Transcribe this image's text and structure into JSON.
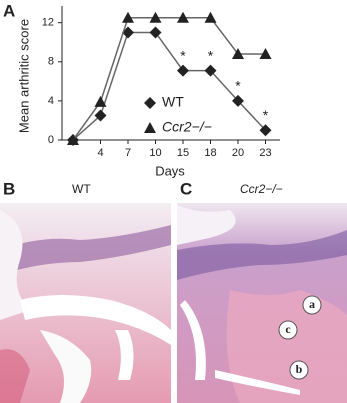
{
  "chart_data": {
    "type": "line",
    "panel_label": "A",
    "y_label": "Mean arthritic score",
    "x_label": "Days",
    "categories": [
      null,
      "4",
      "7",
      "10",
      "15",
      "18",
      "20",
      "23"
    ],
    "series": [
      {
        "name": "WT",
        "color": "#222222",
        "marker": "diamond",
        "values": [
          0,
          2.5,
          11,
          11,
          7.1,
          7.1,
          4,
          1
        ]
      },
      {
        "name": "Ccr2−/−",
        "color": "#222222",
        "marker": "triangle",
        "values": [
          0,
          3.9,
          12.5,
          12.5,
          12.5,
          12.5,
          8.8,
          8.8
        ]
      }
    ],
    "ylim": [
      0,
      13.5
    ],
    "yticks": [
      0,
      4,
      8,
      12
    ],
    "annotations": [
      {
        "text": "*",
        "x": "15"
      },
      {
        "text": "*",
        "x": "18"
      },
      {
        "text": "*",
        "x": "20"
      },
      {
        "text": "*",
        "x": "23"
      }
    ]
  },
  "panel_b": {
    "label": "B",
    "title": "WT"
  },
  "panel_c": {
    "label": "C",
    "title": "Ccr2−/−",
    "regions": [
      "a",
      "c",
      "b"
    ]
  }
}
